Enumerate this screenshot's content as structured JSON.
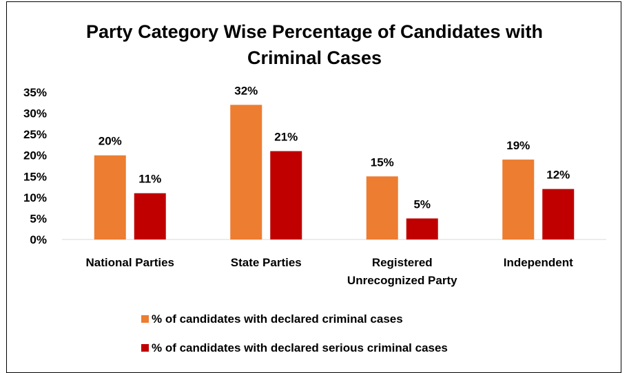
{
  "chart_data": {
    "type": "bar",
    "title_lines": [
      "Party Category Wise Percentage of Candidates with",
      "Criminal Cases"
    ],
    "categories": [
      [
        "National Parties"
      ],
      [
        "State Parties"
      ],
      [
        "Registered",
        "Unrecognized Party"
      ],
      [
        "Independent"
      ]
    ],
    "series": [
      {
        "name": "% of candidates with declared criminal cases",
        "values": [
          20,
          32,
          15,
          19
        ],
        "color": "#ED7D31"
      },
      {
        "name": "% of candidates with declared serious criminal cases",
        "values": [
          11,
          21,
          5,
          12
        ],
        "color": "#C00000"
      }
    ],
    "ylim": [
      0,
      35
    ],
    "yticks": [
      0,
      5,
      10,
      15,
      20,
      25,
      30,
      35
    ],
    "value_suffix": "%",
    "grid": false,
    "legend_position": "bottom"
  }
}
